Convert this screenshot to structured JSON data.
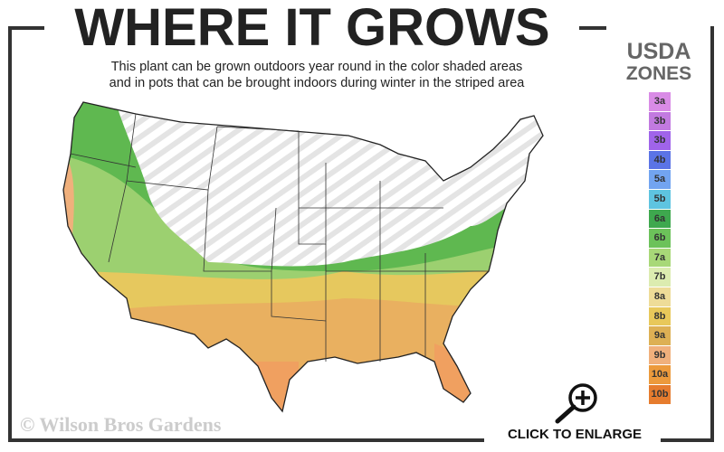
{
  "header": {
    "title": "WHERE IT GROWS",
    "subtitle_line1": "This plant can be grown outdoors year round in the color shaded areas",
    "subtitle_line2": "and in pots that can be brought indoors during winter in the striped area"
  },
  "legend": {
    "title_line1": "USDA",
    "title_line2": "ZONES",
    "zones": [
      {
        "label": "3a",
        "color": "#d98be6"
      },
      {
        "label": "3b",
        "color": "#c27ae0"
      },
      {
        "label": "3b",
        "color": "#a064ea"
      },
      {
        "label": "4b",
        "color": "#5b74e6"
      },
      {
        "label": "5a",
        "color": "#72a4f0"
      },
      {
        "label": "5b",
        "color": "#5ec4e0"
      },
      {
        "label": "6a",
        "color": "#3ea84e"
      },
      {
        "label": "6b",
        "color": "#6cc25a"
      },
      {
        "label": "7a",
        "color": "#a8d878"
      },
      {
        "label": "7b",
        "color": "#dcecb0"
      },
      {
        "label": "8a",
        "color": "#eedc98"
      },
      {
        "label": "8b",
        "color": "#e8c85a"
      },
      {
        "label": "9a",
        "color": "#ddb054"
      },
      {
        "label": "9b",
        "color": "#f0b07c"
      },
      {
        "label": "10a",
        "color": "#ec9a3c"
      },
      {
        "label": "10b",
        "color": "#e67c2e"
      }
    ]
  },
  "footer": {
    "copyright": "© Wilson Bros Gardens",
    "enlarge_label": "CLICK TO ENLARGE",
    "enlarge_icon": "magnifier-plus-icon"
  }
}
